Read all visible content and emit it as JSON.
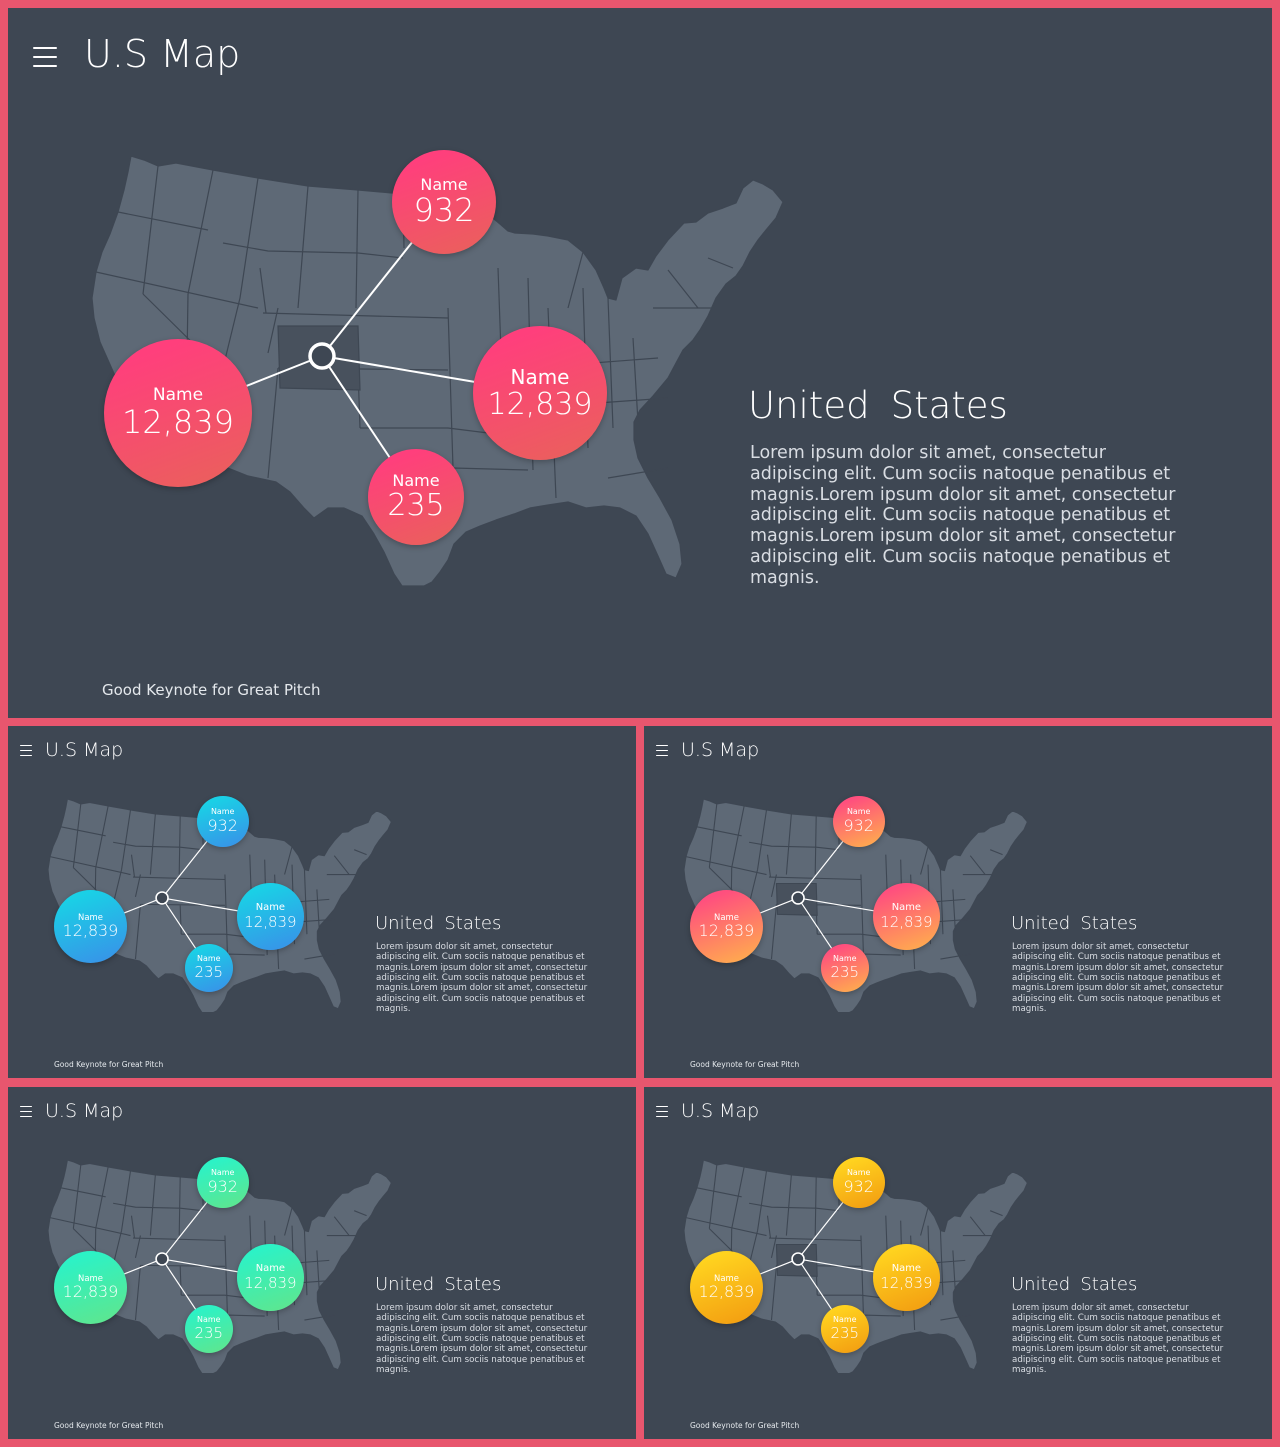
{
  "slides": [
    {
      "title": "U.S Map",
      "heading": "United  States",
      "body": "Lorem ipsum dolor sit amet, consectetur adipiscing elit. Cum sociis natoque penatibus et magnis.Lorem ipsum dolor sit amet, consectetur adipiscing elit. Cum sociis natoque penatibus et magnis.Lorem ipsum dolor sit amet, consectetur adipiscing elit. Cum sociis natoque penatibus et magnis.",
      "footer": "Good Keynote for Great Pitch",
      "theme": {
        "from": "#ff3f7c",
        "to": "#e9625a"
      },
      "bubbles": [
        {
          "label": "Name",
          "value": "932"
        },
        {
          "label": "Name",
          "value": "12,839"
        },
        {
          "label": "Name",
          "value": "12,839"
        },
        {
          "label": "Name",
          "value": "235"
        }
      ]
    },
    {
      "title": "U.S Map",
      "heading": "United  States",
      "body": "Lorem ipsum dolor sit amet, consectetur adipiscing elit. Cum sociis natoque penatibus et magnis.Lorem ipsum dolor sit amet, consectetur adipiscing elit. Cum sociis natoque penatibus et magnis.Lorem ipsum dolor sit amet, consectetur adipiscing elit. Cum sociis natoque penatibus et magnis.",
      "footer": "Good Keynote for Great Pitch",
      "theme": {
        "from": "#1ad0e6",
        "to": "#3a8ee8"
      },
      "bubbles": [
        {
          "label": "Name",
          "value": "932"
        },
        {
          "label": "Name",
          "value": "12,839"
        },
        {
          "label": "Name",
          "value": "12,839"
        },
        {
          "label": "Name",
          "value": "235"
        }
      ]
    },
    {
      "title": "U.S Map",
      "heading": "United  States",
      "body": "Lorem ipsum dolor sit amet, consectetur adipiscing elit. Cum sociis natoque penatibus et magnis.Lorem ipsum dolor sit amet, consectetur adipiscing elit. Cum sociis natoque penatibus et magnis.Lorem ipsum dolor sit amet, consectetur adipiscing elit. Cum sociis natoque penatibus et magnis.",
      "footer": "Good Keynote for Great Pitch",
      "theme": {
        "from": "#ff4f7e",
        "to": "#ffb44a"
      },
      "bubbles": [
        {
          "label": "Name",
          "value": "932"
        },
        {
          "label": "Name",
          "value": "12,839"
        },
        {
          "label": "Name",
          "value": "12,839"
        },
        {
          "label": "Name",
          "value": "235"
        }
      ]
    },
    {
      "title": "U.S Map",
      "heading": "United  States",
      "body": "Lorem ipsum dolor sit amet, consectetur adipiscing elit. Cum sociis natoque penatibus et magnis.Lorem ipsum dolor sit amet, consectetur adipiscing elit. Cum sociis natoque penatibus et magnis.Lorem ipsum dolor sit amet, consectetur adipiscing elit. Cum sociis natoque penatibus et magnis.",
      "footer": "Good Keynote for Great Pitch",
      "theme": {
        "from": "#2cf2c6",
        "to": "#62e58a"
      },
      "bubbles": [
        {
          "label": "Name",
          "value": "932"
        },
        {
          "label": "Name",
          "value": "12,839"
        },
        {
          "label": "Name",
          "value": "12,839"
        },
        {
          "label": "Name",
          "value": "235"
        }
      ]
    },
    {
      "title": "U.S Map",
      "heading": "United  States",
      "body": "Lorem ipsum dolor sit amet, consectetur adipiscing elit. Cum sociis natoque penatibus et magnis.Lorem ipsum dolor sit amet, consectetur adipiscing elit. Cum sociis natoque penatibus et magnis.Lorem ipsum dolor sit amet, consectetur adipiscing elit. Cum sociis natoque penatibus et magnis.",
      "footer": "Good Keynote for Great Pitch",
      "theme": {
        "from": "#ffd21f",
        "to": "#f29a10"
      },
      "bubbles": [
        {
          "label": "Name",
          "value": "932"
        },
        {
          "label": "Name",
          "value": "12,839"
        },
        {
          "label": "Name",
          "value": "12,839"
        },
        {
          "label": "Name",
          "value": "235"
        }
      ]
    }
  ]
}
